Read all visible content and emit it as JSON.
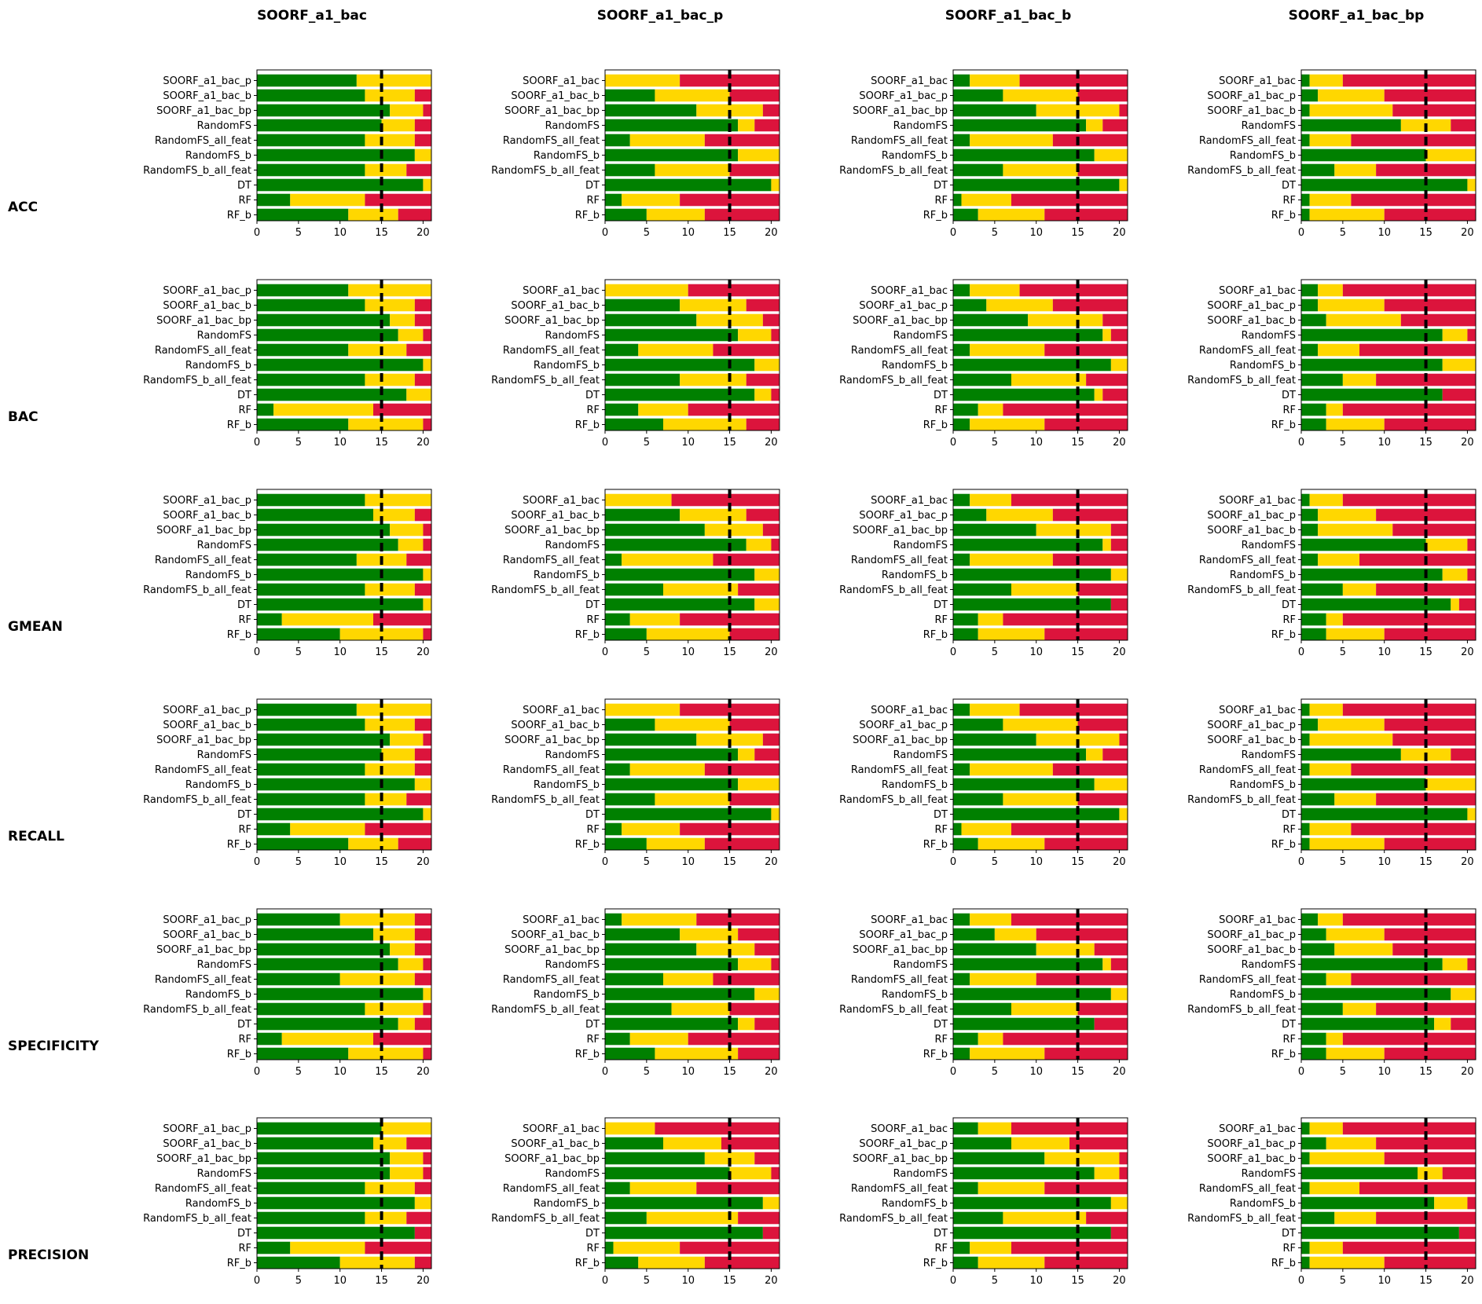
{
  "chart_data": {
    "type": "bar",
    "stacked": true,
    "orientation": "horizontal",
    "xlim": [
      0,
      21
    ],
    "xticks": [
      0,
      5,
      10,
      15,
      20
    ],
    "reference_line": 15,
    "colors": {
      "wins": "#008000",
      "ties": "#ffd700",
      "losses": "#dc143c",
      "reference": "#000000"
    },
    "columns": [
      "SOORF_a1_bac",
      "SOORF_a1_bac_p",
      "SOORF_a1_bac_b",
      "SOORF_a1_bac_bp"
    ],
    "rows": [
      "ACC",
      "BAC",
      "GMEAN",
      "RECALL",
      "SPECIFICITY",
      "PRECISION"
    ],
    "categories": [
      [
        "SOORF_a1_bac_p",
        "SOORF_a1_bac_b",
        "SOORF_a1_bac_bp",
        "RandomFS",
        "RandomFS_all_feat",
        "RandomFS_b",
        "RandomFS_b_all_feat",
        "DT",
        "RF",
        "RF_b"
      ],
      [
        "SOORF_a1_bac",
        "SOORF_a1_bac_b",
        "SOORF_a1_bac_bp",
        "RandomFS",
        "RandomFS_all_feat",
        "RandomFS_b",
        "RandomFS_b_all_feat",
        "DT",
        "RF",
        "RF_b"
      ],
      [
        "SOORF_a1_bac",
        "SOORF_a1_bac_p",
        "SOORF_a1_bac_bp",
        "RandomFS",
        "RandomFS_all_feat",
        "RandomFS_b",
        "RandomFS_b_all_feat",
        "DT",
        "RF",
        "RF_b"
      ],
      [
        "SOORF_a1_bac",
        "SOORF_a1_bac_p",
        "SOORF_a1_bac_b",
        "RandomFS",
        "RandomFS_all_feat",
        "RandomFS_b",
        "RandomFS_b_all_feat",
        "DT",
        "RF",
        "RF_b"
      ]
    ],
    "panels": [
      [
        [
          [
            12,
            21
          ],
          [
            13,
            19
          ],
          [
            16,
            20
          ],
          [
            15,
            19
          ],
          [
            13,
            19
          ],
          [
            19,
            21
          ],
          [
            13,
            18
          ],
          [
            20,
            21
          ],
          [
            4,
            13
          ],
          [
            11,
            17
          ]
        ],
        [
          [
            0,
            9
          ],
          [
            6,
            15
          ],
          [
            11,
            19
          ],
          [
            16,
            18
          ],
          [
            3,
            12
          ],
          [
            16,
            21
          ],
          [
            6,
            15
          ],
          [
            20,
            21
          ],
          [
            2,
            9
          ],
          [
            5,
            12
          ]
        ],
        [
          [
            2,
            8
          ],
          [
            6,
            15
          ],
          [
            10,
            20
          ],
          [
            16,
            18
          ],
          [
            2,
            12
          ],
          [
            17,
            21
          ],
          [
            6,
            15
          ],
          [
            20,
            21
          ],
          [
            1,
            7
          ],
          [
            3,
            11
          ]
        ],
        [
          [
            1,
            5
          ],
          [
            2,
            10
          ],
          [
            1,
            11
          ],
          [
            12,
            18
          ],
          [
            1,
            6
          ],
          [
            15,
            21
          ],
          [
            4,
            9
          ],
          [
            20,
            21
          ],
          [
            1,
            6
          ],
          [
            1,
            10
          ]
        ]
      ],
      [
        [
          [
            11,
            21
          ],
          [
            13,
            19
          ],
          [
            16,
            19
          ],
          [
            17,
            20
          ],
          [
            11,
            18
          ],
          [
            20,
            21
          ],
          [
            13,
            19
          ],
          [
            18,
            21
          ],
          [
            2,
            14
          ],
          [
            11,
            20
          ]
        ],
        [
          [
            0,
            10
          ],
          [
            9,
            17
          ],
          [
            11,
            19
          ],
          [
            16,
            20
          ],
          [
            4,
            13
          ],
          [
            18,
            21
          ],
          [
            9,
            17
          ],
          [
            18,
            20
          ],
          [
            4,
            10
          ],
          [
            7,
            17
          ]
        ],
        [
          [
            2,
            8
          ],
          [
            4,
            12
          ],
          [
            9,
            18
          ],
          [
            18,
            19
          ],
          [
            2,
            11
          ],
          [
            19,
            21
          ],
          [
            7,
            16
          ],
          [
            17,
            18
          ],
          [
            3,
            6
          ],
          [
            2,
            11
          ]
        ],
        [
          [
            2,
            5
          ],
          [
            2,
            10
          ],
          [
            3,
            12
          ],
          [
            17,
            20
          ],
          [
            2,
            7
          ],
          [
            17,
            21
          ],
          [
            5,
            9
          ],
          [
            17,
            17
          ],
          [
            3,
            5
          ],
          [
            3,
            10
          ]
        ]
      ],
      [
        [
          [
            13,
            21
          ],
          [
            14,
            19
          ],
          [
            16,
            20
          ],
          [
            17,
            20
          ],
          [
            12,
            18
          ],
          [
            20,
            21
          ],
          [
            13,
            19
          ],
          [
            20,
            21
          ],
          [
            3,
            14
          ],
          [
            10,
            20
          ]
        ],
        [
          [
            0,
            8
          ],
          [
            9,
            17
          ],
          [
            12,
            19
          ],
          [
            17,
            20
          ],
          [
            2,
            13
          ],
          [
            18,
            21
          ],
          [
            7,
            16
          ],
          [
            18,
            21
          ],
          [
            3,
            9
          ],
          [
            5,
            15
          ]
        ],
        [
          [
            2,
            7
          ],
          [
            4,
            12
          ],
          [
            10,
            19
          ],
          [
            18,
            19
          ],
          [
            2,
            12
          ],
          [
            19,
            21
          ],
          [
            7,
            15
          ],
          [
            19,
            19
          ],
          [
            3,
            6
          ],
          [
            3,
            11
          ]
        ],
        [
          [
            1,
            5
          ],
          [
            2,
            9
          ],
          [
            2,
            11
          ],
          [
            15,
            20
          ],
          [
            2,
            7
          ],
          [
            17,
            20
          ],
          [
            5,
            9
          ],
          [
            18,
            19
          ],
          [
            3,
            5
          ],
          [
            3,
            10
          ]
        ]
      ],
      [
        [
          [
            12,
            21
          ],
          [
            13,
            19
          ],
          [
            16,
            20
          ],
          [
            15,
            19
          ],
          [
            13,
            19
          ],
          [
            19,
            21
          ],
          [
            13,
            18
          ],
          [
            20,
            21
          ],
          [
            4,
            13
          ],
          [
            11,
            17
          ]
        ],
        [
          [
            0,
            9
          ],
          [
            6,
            15
          ],
          [
            11,
            19
          ],
          [
            16,
            18
          ],
          [
            3,
            12
          ],
          [
            16,
            21
          ],
          [
            6,
            15
          ],
          [
            20,
            21
          ],
          [
            2,
            9
          ],
          [
            5,
            12
          ]
        ],
        [
          [
            2,
            8
          ],
          [
            6,
            15
          ],
          [
            10,
            20
          ],
          [
            16,
            18
          ],
          [
            2,
            12
          ],
          [
            17,
            21
          ],
          [
            6,
            15
          ],
          [
            20,
            21
          ],
          [
            1,
            7
          ],
          [
            3,
            11
          ]
        ],
        [
          [
            1,
            5
          ],
          [
            2,
            10
          ],
          [
            1,
            11
          ],
          [
            12,
            18
          ],
          [
            1,
            6
          ],
          [
            15,
            21
          ],
          [
            4,
            9
          ],
          [
            20,
            21
          ],
          [
            1,
            6
          ],
          [
            1,
            10
          ]
        ]
      ],
      [
        [
          [
            10,
            19
          ],
          [
            14,
            19
          ],
          [
            16,
            19
          ],
          [
            17,
            20
          ],
          [
            10,
            19
          ],
          [
            20,
            21
          ],
          [
            13,
            20
          ],
          [
            17,
            19
          ],
          [
            3,
            14
          ],
          [
            11,
            20
          ]
        ],
        [
          [
            2,
            11
          ],
          [
            9,
            16
          ],
          [
            11,
            18
          ],
          [
            16,
            20
          ],
          [
            7,
            13
          ],
          [
            18,
            21
          ],
          [
            8,
            15
          ],
          [
            16,
            18
          ],
          [
            3,
            10
          ],
          [
            6,
            16
          ]
        ],
        [
          [
            2,
            7
          ],
          [
            5,
            10
          ],
          [
            10,
            17
          ],
          [
            18,
            19
          ],
          [
            2,
            10
          ],
          [
            19,
            21
          ],
          [
            7,
            15
          ],
          [
            17,
            17
          ],
          [
            3,
            6
          ],
          [
            2,
            11
          ]
        ],
        [
          [
            2,
            5
          ],
          [
            3,
            10
          ],
          [
            4,
            11
          ],
          [
            17,
            20
          ],
          [
            3,
            6
          ],
          [
            18,
            21
          ],
          [
            5,
            9
          ],
          [
            16,
            18
          ],
          [
            3,
            5
          ],
          [
            3,
            10
          ]
        ]
      ],
      [
        [
          [
            15,
            21
          ],
          [
            14,
            18
          ],
          [
            16,
            20
          ],
          [
            16,
            20
          ],
          [
            13,
            19
          ],
          [
            19,
            21
          ],
          [
            13,
            18
          ],
          [
            19,
            19
          ],
          [
            4,
            13
          ],
          [
            10,
            19
          ]
        ],
        [
          [
            0,
            6
          ],
          [
            7,
            14
          ],
          [
            12,
            18
          ],
          [
            15,
            20
          ],
          [
            3,
            11
          ],
          [
            19,
            21
          ],
          [
            5,
            16
          ],
          [
            19,
            19
          ],
          [
            1,
            9
          ],
          [
            4,
            12
          ]
        ],
        [
          [
            3,
            7
          ],
          [
            7,
            14
          ],
          [
            11,
            20
          ],
          [
            17,
            20
          ],
          [
            3,
            11
          ],
          [
            19,
            21
          ],
          [
            6,
            16
          ],
          [
            19,
            19
          ],
          [
            2,
            7
          ],
          [
            3,
            11
          ]
        ],
        [
          [
            1,
            5
          ],
          [
            3,
            9
          ],
          [
            1,
            10
          ],
          [
            14,
            17
          ],
          [
            1,
            7
          ],
          [
            16,
            20
          ],
          [
            4,
            9
          ],
          [
            19,
            19
          ],
          [
            1,
            5
          ],
          [
            1,
            10
          ]
        ]
      ]
    ]
  }
}
